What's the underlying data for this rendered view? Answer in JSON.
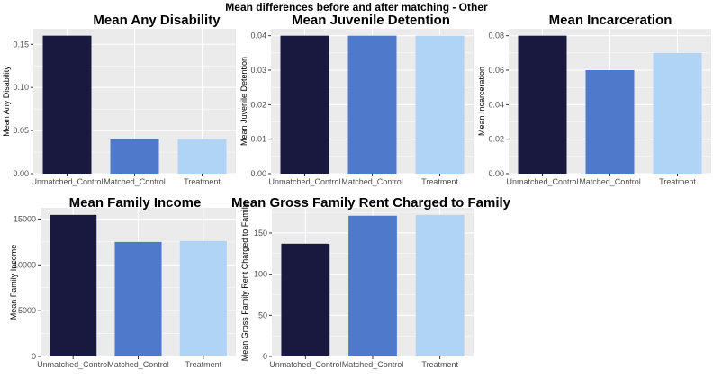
{
  "suptitle": "Mean differences before and after matching - Other",
  "colors": {
    "Unmatched_Control": "#191940",
    "Matched_Control": "#4f7acc",
    "Treatment": "#b0d4f5",
    "panel_background": "#ebebeb",
    "grid": "#ffffff"
  },
  "chart_data": [
    {
      "type": "bar",
      "title": "Mean Any Disability",
      "ylabel": "Mean Any Disability",
      "categories": [
        "Unmatched_Control",
        "Matched_Control",
        "Treatment"
      ],
      "values": [
        0.16,
        0.04,
        0.04
      ],
      "ylim": [
        0,
        0.168
      ],
      "yticks": [
        0,
        0.05,
        0.1,
        0.15
      ],
      "ytick_labels": [
        "0.00",
        "0.05",
        "0.10",
        "0.15"
      ]
    },
    {
      "type": "bar",
      "title": "Mean Juvenile Detention",
      "ylabel": "Mean Juvenile Detention",
      "categories": [
        "Unmatched_Control",
        "Matched_Control",
        "Treatment"
      ],
      "values": [
        0.04,
        0.04,
        0.04
      ],
      "ylim": [
        0,
        0.042
      ],
      "yticks": [
        0,
        0.01,
        0.02,
        0.03,
        0.04
      ],
      "ytick_labels": [
        "0.00",
        "0.01",
        "0.02",
        "0.03",
        "0.04"
      ]
    },
    {
      "type": "bar",
      "title": "Mean Incarceration",
      "ylabel": "Mean Incarceration",
      "categories": [
        "Unmatched_Control",
        "Matched_Control",
        "Treatment"
      ],
      "values": [
        0.08,
        0.06,
        0.07
      ],
      "ylim": [
        0,
        0.084
      ],
      "yticks": [
        0,
        0.02,
        0.04,
        0.06,
        0.08
      ],
      "ytick_labels": [
        "0.00",
        "0.02",
        "0.04",
        "0.06",
        "0.08"
      ]
    },
    {
      "type": "bar",
      "title": "Mean Family Income",
      "ylabel": "Mean Family Income",
      "categories": [
        "Unmatched_Control",
        "Matched_Control",
        "Treatment"
      ],
      "values": [
        15450,
        12500,
        12600
      ],
      "ylim": [
        0,
        16222
      ],
      "yticks": [
        0,
        5000,
        10000,
        15000
      ],
      "ytick_labels": [
        "0",
        "5000",
        "10000",
        "15000"
      ]
    },
    {
      "type": "bar",
      "title": "Mean Gross Family Rent Charged to Family",
      "ylabel": "Mean Gross Family Rent Charged to Family",
      "categories": [
        "Unmatched_Control",
        "Matched_Control",
        "Treatment"
      ],
      "values": [
        137,
        171,
        172
      ],
      "ylim": [
        0,
        180.6
      ],
      "yticks": [
        0,
        50,
        100,
        150
      ],
      "ytick_labels": [
        "0",
        "50",
        "100",
        "150"
      ]
    }
  ]
}
